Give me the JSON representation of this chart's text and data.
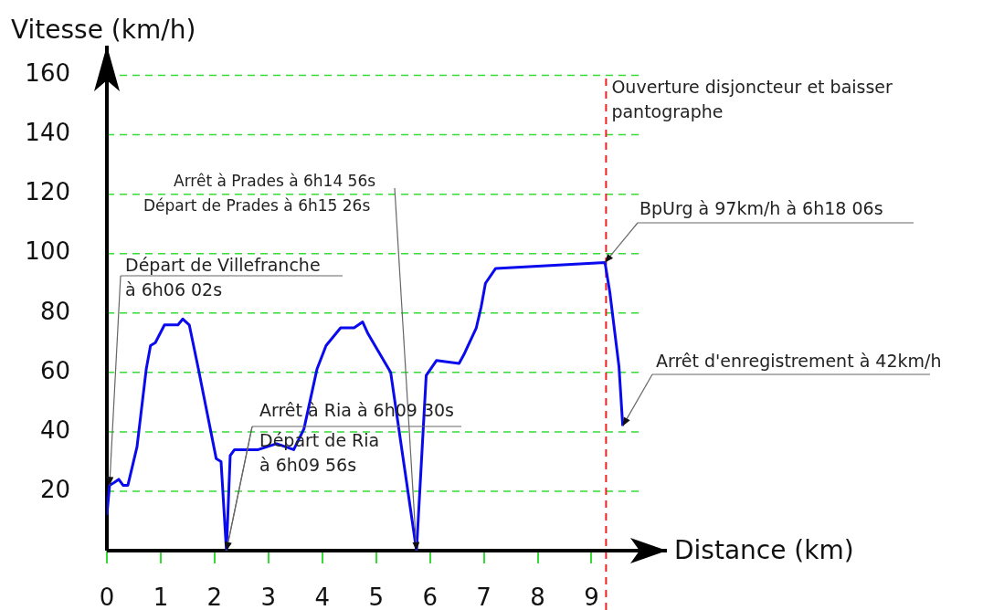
{
  "chart_data": {
    "type": "line",
    "xlabel": "Distance (km)",
    "ylabel": "Vitesse (km/h)",
    "xlim": [
      0,
      10.4
    ],
    "ylim": [
      0,
      170
    ],
    "xticks": [
      0,
      1,
      2,
      3,
      4,
      5,
      6,
      7,
      8,
      9
    ],
    "yticks": [
      {
        "value": 0,
        "label": null
      },
      20,
      40,
      60,
      80,
      100,
      120,
      140,
      160
    ],
    "grid": "y",
    "series": [
      {
        "color": "#0a0aee",
        "x": [
          0,
          0.05,
          0.14,
          0.22,
          0.3,
          0.39,
          0.56,
          0.73,
          0.81,
          0.9,
          1.07,
          1.32,
          1.41,
          1.53,
          1.69,
          2.03,
          2.12,
          2.22,
          2.29,
          2.37,
          2.81,
          3.15,
          3.47,
          3.66,
          3.9,
          4.07,
          4.34,
          4.59,
          4.75,
          4.85,
          5.27,
          5.75,
          5.93,
          6.12,
          6.54,
          6.63,
          6.86,
          6.95,
          7.03,
          7.22,
          9.25,
          9.34,
          9.51,
          9.58
        ],
        "values": [
          12,
          22,
          23,
          24,
          22,
          22,
          35,
          61,
          69,
          70,
          76,
          76,
          78,
          76,
          62,
          31,
          30,
          0,
          32,
          34,
          34,
          36,
          34,
          41,
          61,
          69,
          75,
          75,
          77,
          73,
          60,
          0,
          59,
          64,
          63,
          66,
          75,
          82,
          90,
          95,
          97,
          87,
          62,
          42
        ]
      }
    ],
    "ref_lines": [
      {
        "axis": "x",
        "value": 9.27,
        "label": "Ouverture disjoncteur et baisser\npantographe",
        "color": "#ee2222",
        "line_style": "dashed"
      }
    ],
    "annotations": [
      {
        "text": "Départ de Villefranche\nà 6h06 02s",
        "x": 0.05,
        "y": 22
      },
      {
        "text": "Arrêt à Prades à 6h14 56s",
        "x": 5.75,
        "y": 0
      },
      "Départ de Prades à 6h15 26s",
      {
        "text": "Arrêt à Ria à 6h09 30s",
        "x": 2.22,
        "y": 0
      },
      {
        "text": "Départ de Ria\nà 6h09 56s",
        "x": 2.22,
        "y": 0
      },
      {
        "text": "BpUrg à 97km/h à 6h18 06s",
        "x": 9.25,
        "y": 97
      },
      {
        "text": "Arrêt d'enregistrement à 42km/h",
        "x": 9.58,
        "y": 42
      }
    ]
  }
}
